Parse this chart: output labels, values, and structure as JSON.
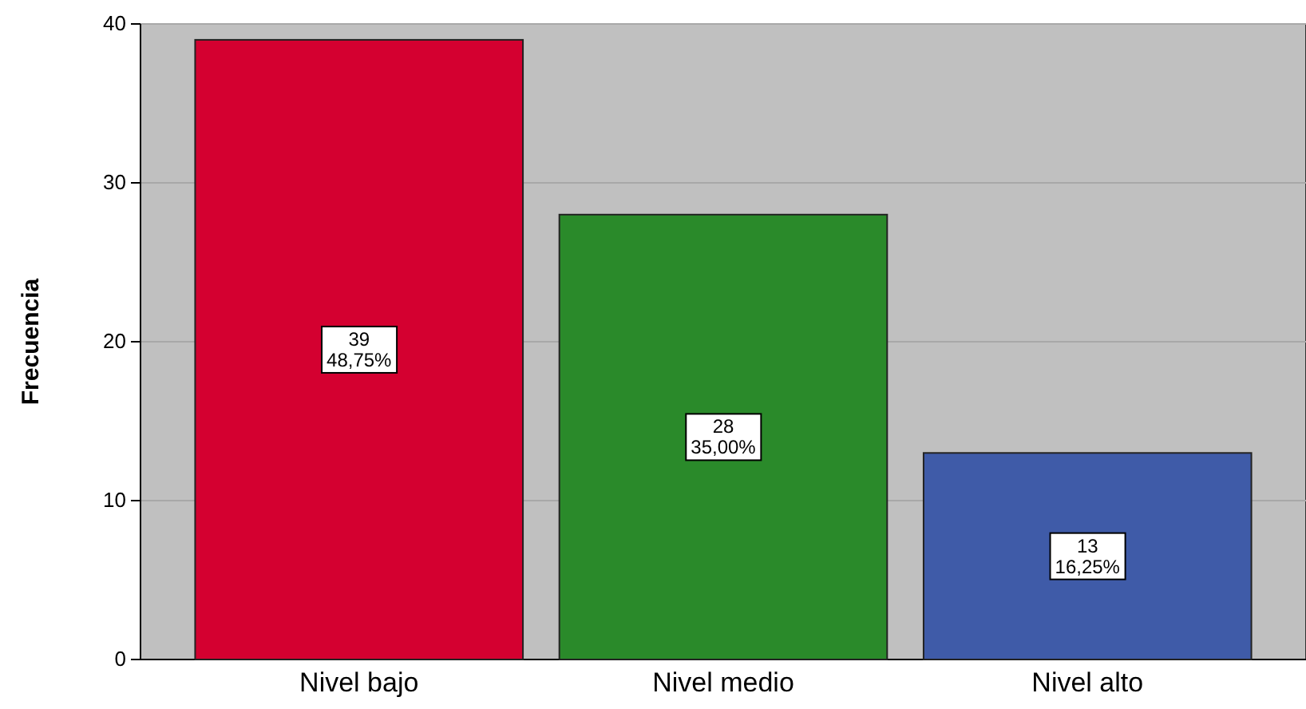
{
  "chart_data": {
    "type": "bar",
    "ylabel": "Frecuencia",
    "categories": [
      "Nivel bajo",
      "Nivel medio",
      "Nivel alto"
    ],
    "values": [
      39,
      28,
      13
    ],
    "colors": [
      "#d40030",
      "#2a8a2a",
      "#3f5ba8"
    ],
    "value_labels": [
      "39\n48,75%",
      "28\n35,00%",
      "13\n16,25%"
    ],
    "ylim": [
      0,
      40
    ],
    "yticks": [
      0,
      10,
      20,
      30,
      40
    ],
    "grid": "y"
  }
}
